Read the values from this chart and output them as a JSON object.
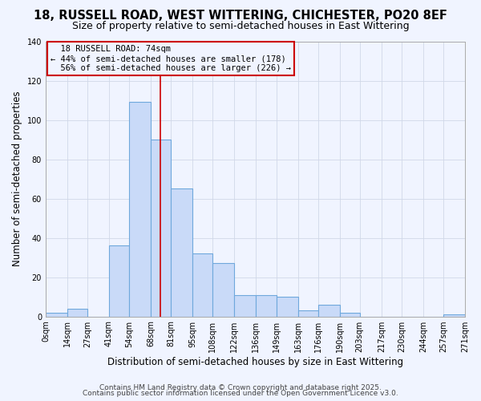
{
  "title": "18, RUSSELL ROAD, WEST WITTERING, CHICHESTER, PO20 8EF",
  "subtitle": "Size of property relative to semi-detached houses in East Wittering",
  "xlabel": "Distribution of semi-detached houses by size in East Wittering",
  "ylabel": "Number of semi-detached properties",
  "bin_edges": [
    0,
    14,
    27,
    41,
    54,
    68,
    81,
    95,
    108,
    122,
    136,
    149,
    163,
    176,
    190,
    203,
    217,
    230,
    244,
    257,
    271
  ],
  "bar_heights": [
    2,
    4,
    0,
    36,
    109,
    90,
    65,
    32,
    27,
    11,
    11,
    10,
    3,
    6,
    2,
    0,
    0,
    0,
    0,
    1
  ],
  "tick_labels": [
    "0sqm",
    "14sqm",
    "27sqm",
    "41sqm",
    "54sqm",
    "68sqm",
    "81sqm",
    "95sqm",
    "108sqm",
    "122sqm",
    "136sqm",
    "149sqm",
    "163sqm",
    "176sqm",
    "190sqm",
    "203sqm",
    "217sqm",
    "230sqm",
    "244sqm",
    "257sqm",
    "271sqm"
  ],
  "bar_face_color": "#c9daf8",
  "bar_edge_color": "#6fa8dc",
  "grid_color": "#d0d8e8",
  "bg_color": "#f0f4ff",
  "property_line_x": 74,
  "property_label": "18 RUSSELL ROAD: 74sqm",
  "pct_smaller": 44,
  "count_smaller": 178,
  "pct_larger": 56,
  "count_larger": 226,
  "annotation_box_color": "#cc0000",
  "ylim": [
    0,
    140
  ],
  "yticks": [
    0,
    20,
    40,
    60,
    80,
    100,
    120,
    140
  ],
  "footer_line1": "Contains HM Land Registry data © Crown copyright and database right 2025.",
  "footer_line2": "Contains public sector information licensed under the Open Government Licence v3.0.",
  "title_fontsize": 10.5,
  "subtitle_fontsize": 9,
  "axis_label_fontsize": 8.5,
  "tick_fontsize": 7,
  "annotation_fontsize": 7.5,
  "footer_fontsize": 6.5
}
